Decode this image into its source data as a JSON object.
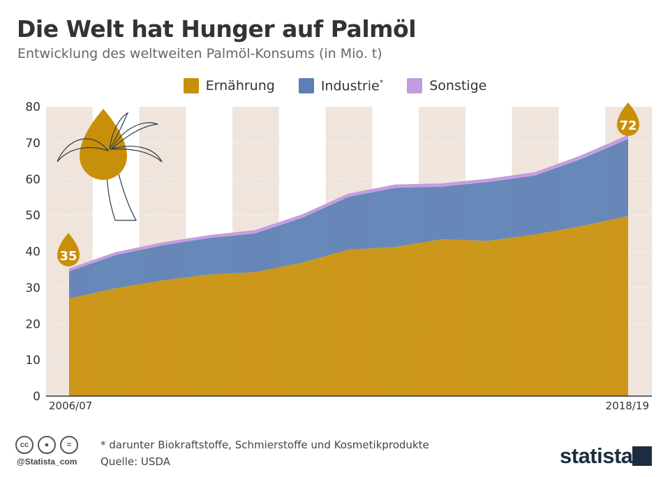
{
  "header": {
    "title": "Die Welt hat Hunger auf Palmöl",
    "subtitle": "Entwicklung des weltweiten Palmöl-Konsums (in Mio. t)"
  },
  "legend": {
    "ernaehrung": "Ernährung",
    "industrie": "Industrie",
    "industrie_mark": "*",
    "sonstige": "Sonstige"
  },
  "colors": {
    "ernaehrung": "#c8900a",
    "industrie": "#5b80b4",
    "sonstige": "#c49be0",
    "band": "#efe5dc"
  },
  "chart_data": {
    "type": "area",
    "stacked": true,
    "x_start_label": "2006/07",
    "x_end_label": "2018/19",
    "ylim": [
      0,
      80
    ],
    "yticks": [
      0,
      10,
      20,
      30,
      40,
      50,
      60,
      70,
      80
    ],
    "series": [
      {
        "name": "Ernährung",
        "values": [
          27,
          29.8,
          32,
          33.6,
          34.3,
          36.9,
          40.5,
          41.2,
          43.4,
          42.9,
          44.7,
          47,
          49.8
        ]
      },
      {
        "name": "Industrie",
        "values": [
          7.5,
          9.2,
          9.7,
          10.1,
          10.7,
          12.4,
          14.6,
          16.4,
          14.5,
          16.3,
          16.3,
          18.6,
          21.3
        ]
      },
      {
        "name": "Sonstige",
        "values": [
          0.5,
          0.5,
          0.5,
          0.5,
          0.6,
          0.6,
          0.6,
          0.6,
          0.6,
          0.6,
          0.6,
          0.7,
          0.8
        ]
      }
    ],
    "annotations": {
      "start_value": "35",
      "end_value": "72"
    }
  },
  "footer": {
    "note": "* darunter Biokraftstoffe, Schmierstoffe und Kosmetikprodukte",
    "source": "Quelle: USDA",
    "handle": "@Statista_com",
    "brand": "statista"
  }
}
